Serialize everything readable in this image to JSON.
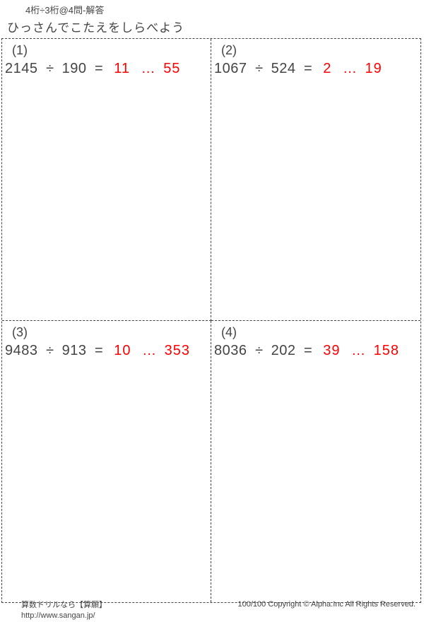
{
  "header": {
    "subtitle": "4桁÷3桁@4問-解答",
    "title": "ひっさんでこたえをしらべよう"
  },
  "problems": [
    {
      "num": "(1)",
      "dividend": "2145",
      "divisor": "190",
      "quotient": "11",
      "remainder": "55"
    },
    {
      "num": "(2)",
      "dividend": "1067",
      "divisor": "524",
      "quotient": "2",
      "remainder": "19"
    },
    {
      "num": "(3)",
      "dividend": "9483",
      "divisor": "913",
      "quotient": "10",
      "remainder": "353"
    },
    {
      "num": "(4)",
      "dividend": "8036",
      "divisor": "202",
      "quotient": "39",
      "remainder": "158"
    }
  ],
  "symbols": {
    "divide": "÷",
    "equals": "=",
    "dots": "…"
  },
  "footer": {
    "line1": "算数ドリルなら【算願】",
    "line2": "http://www.sangan.jp/",
    "score": "100/100",
    "copyright": "Copyright © Alpha.Inc All Rights Reserved."
  },
  "colors": {
    "text": "#444444",
    "answer": "#ff0000",
    "bg": "#ffffff",
    "border": "#444444"
  }
}
